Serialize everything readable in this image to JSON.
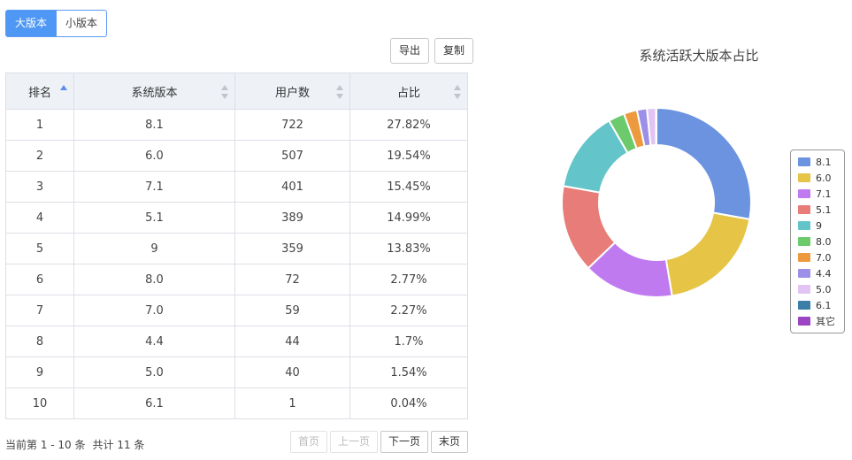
{
  "tabs": [
    {
      "label": "大版本",
      "active": true
    },
    {
      "label": "小版本",
      "active": false
    }
  ],
  "toolbar": {
    "export_label": "导出",
    "copy_label": "复制"
  },
  "table": {
    "headers": [
      "排名",
      "系统版本",
      "用户数",
      "占比"
    ],
    "rows": [
      [
        "1",
        "8.1",
        "722",
        "27.82%"
      ],
      [
        "2",
        "6.0",
        "507",
        "19.54%"
      ],
      [
        "3",
        "7.1",
        "401",
        "15.45%"
      ],
      [
        "4",
        "5.1",
        "389",
        "14.99%"
      ],
      [
        "5",
        "9",
        "359",
        "13.83%"
      ],
      [
        "6",
        "8.0",
        "72",
        "2.77%"
      ],
      [
        "7",
        "7.0",
        "59",
        "2.27%"
      ],
      [
        "8",
        "4.4",
        "44",
        "1.7%"
      ],
      [
        "9",
        "5.0",
        "40",
        "1.54%"
      ],
      [
        "10",
        "6.1",
        "1",
        "0.04%"
      ]
    ]
  },
  "pager": {
    "range_text": "当前第 1 - 10 条",
    "total_text": "共计 11 条",
    "first_label": "首页",
    "prev_label": "上一页",
    "next_label": "下一页",
    "last_label": "末页"
  },
  "chart_data": {
    "type": "pie",
    "title": "系统活跃大版本占比",
    "legend_position": "right",
    "slices": [
      {
        "label": "8.1",
        "value": 722,
        "color": "#6b93e0"
      },
      {
        "label": "6.0",
        "value": 507,
        "color": "#e6c446"
      },
      {
        "label": "7.1",
        "value": 401,
        "color": "#c07af0"
      },
      {
        "label": "5.1",
        "value": 389,
        "color": "#e77c78"
      },
      {
        "label": "9",
        "value": 359,
        "color": "#63c4c9"
      },
      {
        "label": "8.0",
        "value": 72,
        "color": "#6cc96c"
      },
      {
        "label": "7.0",
        "value": 59,
        "color": "#ed9a3e"
      },
      {
        "label": "4.4",
        "value": 44,
        "color": "#9b8fe8"
      },
      {
        "label": "5.0",
        "value": 40,
        "color": "#e2c4f4"
      },
      {
        "label": "6.1",
        "value": 1,
        "color": "#3b7fa8"
      },
      {
        "label": "其它",
        "value": 1,
        "color": "#9b45c2"
      }
    ]
  }
}
